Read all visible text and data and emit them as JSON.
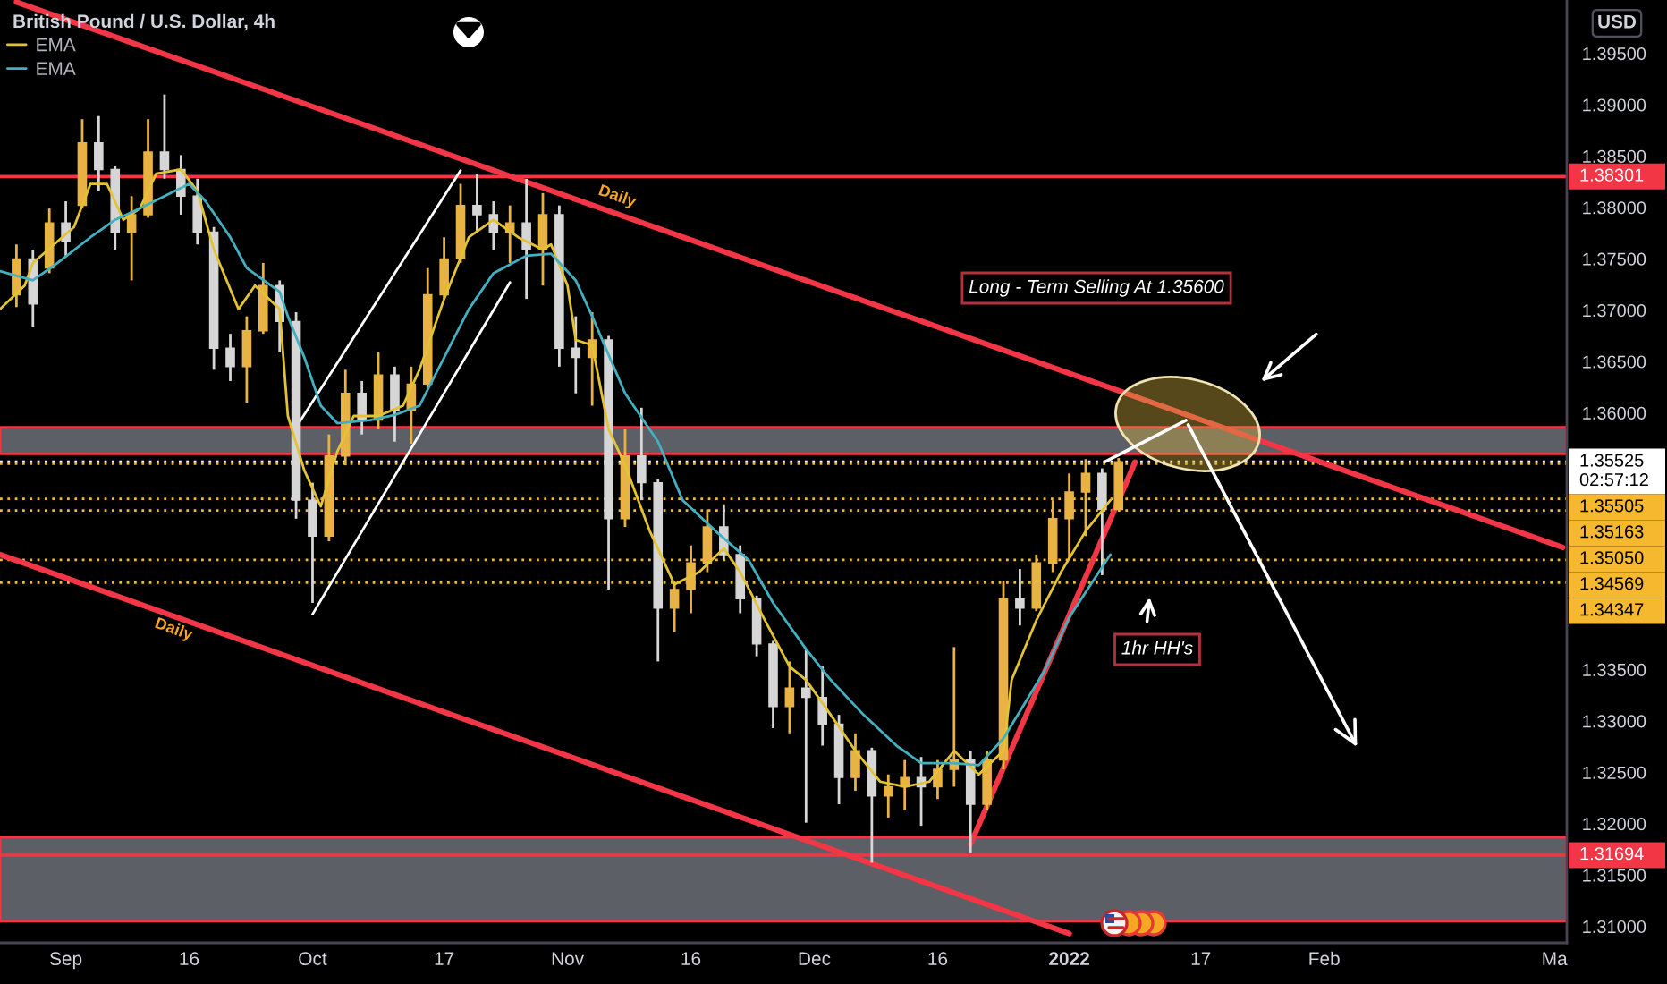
{
  "chart_data": {
    "type": "candlestick",
    "title": "British Pound / U.S. Dollar, 4h",
    "ylabel": "USD",
    "xlim": [
      "2021-08-24",
      "2022-03-02T12:00"
    ],
    "xticks": [
      {
        "value": "2021-09-01",
        "label": "Sep"
      },
      {
        "value": "2021-09-16",
        "label": "16"
      },
      {
        "value": "2021-10-01",
        "label": "Oct"
      },
      {
        "value": "2021-10-17",
        "label": "17"
      },
      {
        "value": "2021-11-01",
        "label": "Nov"
      },
      {
        "value": "2021-11-16",
        "label": "16"
      },
      {
        "value": "2021-12-01",
        "label": "Dec"
      },
      {
        "value": "2021-12-16",
        "label": "16"
      },
      {
        "value": "2022-01-01",
        "label": "2022"
      },
      {
        "value": "2022-01-17",
        "label": "17"
      },
      {
        "value": "2022-02-01",
        "label": "Feb"
      },
      {
        "value": "2022-03-01",
        "label": "Ma"
      }
    ],
    "ylim": [
      1.3084,
      1.4002
    ],
    "yticks": [
      {
        "value": 1.395,
        "label": "1.39500"
      },
      {
        "value": 1.39,
        "label": "1.39000"
      },
      {
        "value": 1.385,
        "label": "1.38500"
      },
      {
        "value": 1.38,
        "label": "1.38000"
      },
      {
        "value": 1.375,
        "label": "1.37500"
      },
      {
        "value": 1.37,
        "label": "1.37000"
      },
      {
        "value": 1.365,
        "label": "1.36500"
      },
      {
        "value": 1.36,
        "label": "1.36000"
      },
      {
        "value": 1.335,
        "label": "1.33500"
      },
      {
        "value": 1.33,
        "label": "1.33000"
      },
      {
        "value": 1.325,
        "label": "1.32500"
      },
      {
        "value": 1.32,
        "label": "1.32000"
      },
      {
        "value": 1.315,
        "label": "1.31500"
      },
      {
        "value": 1.31,
        "label": "1.31000"
      }
    ],
    "grid": false,
    "legend": "top left",
    "series": [
      {
        "color": "#e9b343",
        "x": [
          "2021-08-26",
          "2021-08-30",
          "2021-09-03",
          "2021-09-09",
          "2021-09-11",
          "2021-09-23",
          "2021-09-25",
          "2021-10-03",
          "2021-10-05",
          "2021-10-09",
          "2021-10-13",
          "2021-10-15",
          "2021-10-17",
          "2021-10-19",
          "2021-10-25",
          "2021-10-29",
          "2021-11-04",
          "2021-11-08",
          "2021-11-14",
          "2021-11-16",
          "2021-11-18",
          "2021-11-28",
          "2021-12-06",
          "2021-12-10",
          "2021-12-12",
          "2021-12-16",
          "2021-12-18",
          "2021-12-22",
          "2021-12-24",
          "2021-12-28",
          "2021-12-30",
          "2022-01-01",
          "2022-01-03",
          "2022-01-07"
        ],
        "ohlc": [
          [
            1.3715,
            1.3764,
            1.3703,
            1.375
          ],
          [
            1.3741,
            1.3799,
            1.3736,
            1.3785
          ],
          [
            1.3802,
            1.3886,
            1.3799,
            1.3863
          ],
          [
            1.3776,
            1.3811,
            1.3729,
            1.3793
          ],
          [
            1.3793,
            1.3886,
            1.379,
            1.3854
          ],
          [
            1.3645,
            1.3694,
            1.361,
            1.368
          ],
          [
            1.368,
            1.3746,
            1.3677,
            1.3724
          ],
          [
            1.348,
            1.3579,
            1.3475,
            1.3558
          ],
          [
            1.3558,
            1.3642,
            1.3549,
            1.3619
          ],
          [
            1.3593,
            1.3659,
            1.3584,
            1.3637
          ],
          [
            1.3602,
            1.3645,
            1.357,
            1.3628
          ],
          [
            1.3628,
            1.3741,
            1.3624,
            1.3715
          ],
          [
            1.3715,
            1.3771,
            1.3711,
            1.375
          ],
          [
            1.375,
            1.3823,
            1.3746,
            1.3802
          ],
          [
            1.3776,
            1.3802,
            1.3746,
            1.3785
          ],
          [
            1.3759,
            1.3814,
            1.3724,
            1.3793
          ],
          [
            1.3654,
            1.3698,
            1.3607,
            1.3671
          ],
          [
            1.3497,
            1.3584,
            1.3489,
            1.3558
          ],
          [
            1.341,
            1.3436,
            1.3387,
            1.3428
          ],
          [
            1.3428,
            1.3471,
            1.3405,
            1.3454
          ],
          [
            1.3454,
            1.3506,
            1.3445,
            1.3489
          ],
          [
            1.3314,
            1.3358,
            1.3288,
            1.3332
          ],
          [
            1.3245,
            1.3288,
            1.3232,
            1.3271
          ],
          [
            1.3227,
            1.3248,
            1.3206,
            1.3236
          ],
          [
            1.3236,
            1.3262,
            1.3213,
            1.3245
          ],
          [
            1.3236,
            1.3262,
            1.3224,
            1.3253
          ],
          [
            1.3253,
            1.3372,
            1.3236,
            1.3262
          ],
          [
            1.3219,
            1.3271,
            1.3213,
            1.3262
          ],
          [
            1.3262,
            1.3436,
            1.3253,
            1.3419
          ],
          [
            1.341,
            1.3462,
            1.3407,
            1.3454
          ],
          [
            1.3454,
            1.3515,
            1.3445,
            1.3497
          ],
          [
            1.3497,
            1.3541,
            1.3457,
            1.3523
          ],
          [
            1.3523,
            1.3555,
            1.348,
            1.3541
          ],
          [
            1.3506,
            1.3556,
            1.3506,
            1.35525
          ]
        ]
      },
      {
        "color": "#d6d6d6",
        "x": [
          "2021-08-28",
          "2021-09-01",
          "2021-09-05",
          "2021-09-07",
          "2021-09-13",
          "2021-09-15",
          "2021-09-17",
          "2021-09-19",
          "2021-09-21",
          "2021-09-27",
          "2021-09-29",
          "2021-10-01",
          "2021-10-07",
          "2021-10-11",
          "2021-10-21",
          "2021-10-23",
          "2021-10-27",
          "2021-10-31",
          "2021-11-02",
          "2021-11-06",
          "2021-11-10",
          "2021-11-12",
          "2021-11-20",
          "2021-11-22",
          "2021-11-24",
          "2021-11-26",
          "2021-11-30",
          "2021-12-02",
          "2021-12-04",
          "2021-12-08",
          "2021-12-14",
          "2021-12-20",
          "2021-12-26",
          "2022-01-05"
        ],
        "ohlc": [
          [
            1.375,
            1.3759,
            1.3684,
            1.3706
          ],
          [
            1.3785,
            1.3806,
            1.3753,
            1.3767
          ],
          [
            1.3863,
            1.3889,
            1.3816,
            1.3837
          ],
          [
            1.3837,
            1.384,
            1.3759,
            1.3776
          ],
          [
            1.3854,
            1.391,
            1.3828,
            1.3837
          ],
          [
            1.3837,
            1.3851,
            1.3793,
            1.3811
          ],
          [
            1.3811,
            1.3828,
            1.3764,
            1.3776
          ],
          [
            1.3776,
            1.3781,
            1.3642,
            1.3663
          ],
          [
            1.3663,
            1.3677,
            1.3631,
            1.3645
          ],
          [
            1.3724,
            1.3729,
            1.3659,
            1.3689
          ],
          [
            1.3689,
            1.3698,
            1.3497,
            1.3515
          ],
          [
            1.3515,
            1.3532,
            1.3415,
            1.348
          ],
          [
            1.3619,
            1.3631,
            1.3579,
            1.3593
          ],
          [
            1.3637,
            1.3645,
            1.3572,
            1.3602
          ],
          [
            1.3802,
            1.3833,
            1.3776,
            1.3793
          ],
          [
            1.3793,
            1.3806,
            1.3759,
            1.3776
          ],
          [
            1.3785,
            1.3828,
            1.3711,
            1.3759
          ],
          [
            1.3793,
            1.3802,
            1.3645,
            1.3663
          ],
          [
            1.3663,
            1.3694,
            1.3619,
            1.3654
          ],
          [
            1.3671,
            1.3675,
            1.3428,
            1.3497
          ],
          [
            1.3558,
            1.3605,
            1.3515,
            1.3532
          ],
          [
            1.3532,
            1.3536,
            1.3358,
            1.341
          ],
          [
            1.3489,
            1.3511,
            1.3457,
            1.3462
          ],
          [
            1.3462,
            1.3471,
            1.3405,
            1.3419
          ],
          [
            1.3419,
            1.3422,
            1.3363,
            1.3375
          ],
          [
            1.3375,
            1.3378,
            1.3293,
            1.3314
          ],
          [
            1.3332,
            1.337,
            1.3201,
            1.3323
          ],
          [
            1.3323,
            1.3353,
            1.3276,
            1.3297
          ],
          [
            1.3297,
            1.3306,
            1.3219,
            1.3245
          ],
          [
            1.3271,
            1.3274,
            1.3162,
            1.3227
          ],
          [
            1.3245,
            1.3265,
            1.3198,
            1.3236
          ],
          [
            1.3262,
            1.3271,
            1.3172,
            1.3219
          ],
          [
            1.3419,
            1.3448,
            1.3393,
            1.341
          ],
          [
            1.3541,
            1.3546,
            1.3442,
            1.3506
          ]
        ]
      },
      {
        "type": "line",
        "name": "EMA",
        "color": "#e3c334",
        "x": [
          "2021-08-24",
          "2021-08-27",
          "2021-08-28",
          "2021-09-02",
          "2021-09-04",
          "2021-09-06",
          "2021-09-08",
          "2021-09-10",
          "2021-09-12",
          "2021-09-15",
          "2021-09-17",
          "2021-09-19",
          "2021-09-22",
          "2021-09-24",
          "2021-09-27",
          "2021-09-28",
          "2021-09-30",
          "2021-10-02",
          "2021-10-04",
          "2021-10-06",
          "2021-10-09",
          "2021-10-12",
          "2021-10-14",
          "2021-10-17",
          "2021-10-20",
          "2021-10-23",
          "2021-10-26",
          "2021-10-29",
          "2021-10-30",
          "2021-11-01",
          "2021-11-02",
          "2021-11-04",
          "2021-11-06",
          "2021-11-08",
          "2021-11-11",
          "2021-11-14",
          "2021-11-17",
          "2021-11-20",
          "2021-11-22",
          "2021-11-25",
          "2021-11-28",
          "2021-11-30",
          "2021-12-03",
          "2021-12-06",
          "2021-12-09",
          "2021-12-12",
          "2021-12-15",
          "2021-12-18",
          "2021-12-21",
          "2021-12-24",
          "2021-12-25",
          "2021-12-28",
          "2021-12-31",
          "2022-01-03",
          "2022-01-06"
        ],
        "values": [
          1.3701,
          1.3724,
          1.3746,
          1.3781,
          1.3823,
          1.3823,
          1.3788,
          1.3799,
          1.3833,
          1.3837,
          1.3816,
          1.3759,
          1.3701,
          1.3724,
          1.3701,
          1.3597,
          1.3544,
          1.3509,
          1.3562,
          1.3597,
          1.3597,
          1.3607,
          1.3642,
          1.3711,
          1.3771,
          1.3788,
          1.3771,
          1.3759,
          1.3764,
          1.3724,
          1.3671,
          1.3666,
          1.3584,
          1.3549,
          1.3485,
          1.3433,
          1.3445,
          1.3468,
          1.3445,
          1.3398,
          1.3353,
          1.334,
          1.3306,
          1.3271,
          1.3241,
          1.3236,
          1.3241,
          1.3271,
          1.3248,
          1.3271,
          1.334,
          1.3398,
          1.3445,
          1.3485,
          1.3515
        ]
      },
      {
        "type": "line",
        "name": "EMA",
        "color": "#42b0c0",
        "x": [
          "2021-08-24",
          "2021-08-28",
          "2021-08-31",
          "2021-09-04",
          "2021-09-07",
          "2021-09-10",
          "2021-09-13",
          "2021-09-16",
          "2021-09-18",
          "2021-09-21",
          "2021-09-23",
          "2021-09-27",
          "2021-09-28",
          "2021-09-30",
          "2021-10-02",
          "2021-10-04",
          "2021-10-08",
          "2021-10-11",
          "2021-10-14",
          "2021-10-17",
          "2021-10-20",
          "2021-10-23",
          "2021-10-27",
          "2021-10-30",
          "2021-11-02",
          "2021-11-04",
          "2021-11-08",
          "2021-11-12",
          "2021-11-15",
          "2021-11-19",
          "2021-11-23",
          "2021-11-26",
          "2021-11-30",
          "2021-12-03",
          "2021-12-07",
          "2021-12-11",
          "2021-12-14",
          "2021-12-18",
          "2021-12-21",
          "2021-12-24",
          "2021-12-29",
          "2022-01-01",
          "2022-01-06"
        ],
        "values": [
          1.3738,
          1.3729,
          1.3746,
          1.3771,
          1.3788,
          1.3799,
          1.3811,
          1.3823,
          1.3806,
          1.3771,
          1.3741,
          1.3718,
          1.3694,
          1.3654,
          1.3607,
          1.359,
          1.3593,
          1.3598,
          1.3607,
          1.3654,
          1.3701,
          1.3736,
          1.3753,
          1.3755,
          1.3729,
          1.3694,
          1.3619,
          1.3572,
          1.3515,
          1.3485,
          1.3457,
          1.3415,
          1.337,
          1.334,
          1.3306,
          1.3276,
          1.3259,
          1.3259,
          1.3257,
          1.3283,
          1.3349,
          1.3401,
          1.3462
        ]
      },
      {
        "type": "line",
        "color": "#f23645",
        "x": [
          "2021-08-26",
          "2022-03-02"
        ],
        "values": [
          1.4,
          1.3469
        ]
      },
      {
        "type": "line",
        "color": "#f23645",
        "x": [
          "2021-08-24",
          "2022-01-01"
        ],
        "values": [
          1.3462,
          1.3093
        ]
      },
      {
        "type": "line",
        "color": "#f23645",
        "x": [
          "2021-12-20",
          "2022-01-09"
        ],
        "values": [
          1.318,
          1.3552
        ]
      },
      {
        "type": "line",
        "color": "#ffffff",
        "x": [
          "2021-09-29",
          "2021-10-19"
        ],
        "values": [
          1.3586,
          1.3836
        ]
      },
      {
        "type": "line",
        "color": "#ffffff",
        "x": [
          "2021-10-01",
          "2021-10-25"
        ],
        "values": [
          1.3404,
          1.3727
        ]
      }
    ],
    "ref_lines": [
      {
        "axis": "y",
        "value": 1.38301,
        "label": "1.38301",
        "color": "#f23645",
        "line_style": "solid"
      },
      {
        "axis": "y",
        "value": 1.31694,
        "label": "1.31694",
        "color": "#f23645",
        "line_style": "solid"
      },
      {
        "axis": "y",
        "value": 1.35525,
        "label": "1.35525\n02:57:12",
        "color": "#ffffff",
        "line_style": "dotted"
      },
      {
        "axis": "y",
        "value": 1.35505,
        "label": "1.35505",
        "color": "#f5b82e",
        "line_style": "dotted"
      },
      {
        "axis": "y",
        "value": 1.35163,
        "label": "1.35163",
        "color": "#f5b82e",
        "line_style": "dotted"
      },
      {
        "axis": "y",
        "value": 1.3505,
        "label": "1.35050",
        "color": "#f5b82e",
        "line_style": "dotted"
      },
      {
        "axis": "y",
        "value": 1.34569,
        "label": "1.34569",
        "color": "#f5b82e",
        "line_style": "dotted"
      },
      {
        "axis": "y",
        "value": 1.34347,
        "label": "1.34347",
        "color": "#f5b82e",
        "line_style": "dotted"
      }
    ],
    "bands": [
      {
        "axis": "y",
        "from": 1.356,
        "to": 1.3586,
        "color": "#5d5f66"
      },
      {
        "axis": "y",
        "from": 1.3105,
        "to": 1.3187,
        "color": "#5d5f66"
      }
    ],
    "annotations": [
      "Daily",
      "Daily",
      "Long - Term Selling At 1.35600",
      "1hr HH's"
    ]
  }
}
